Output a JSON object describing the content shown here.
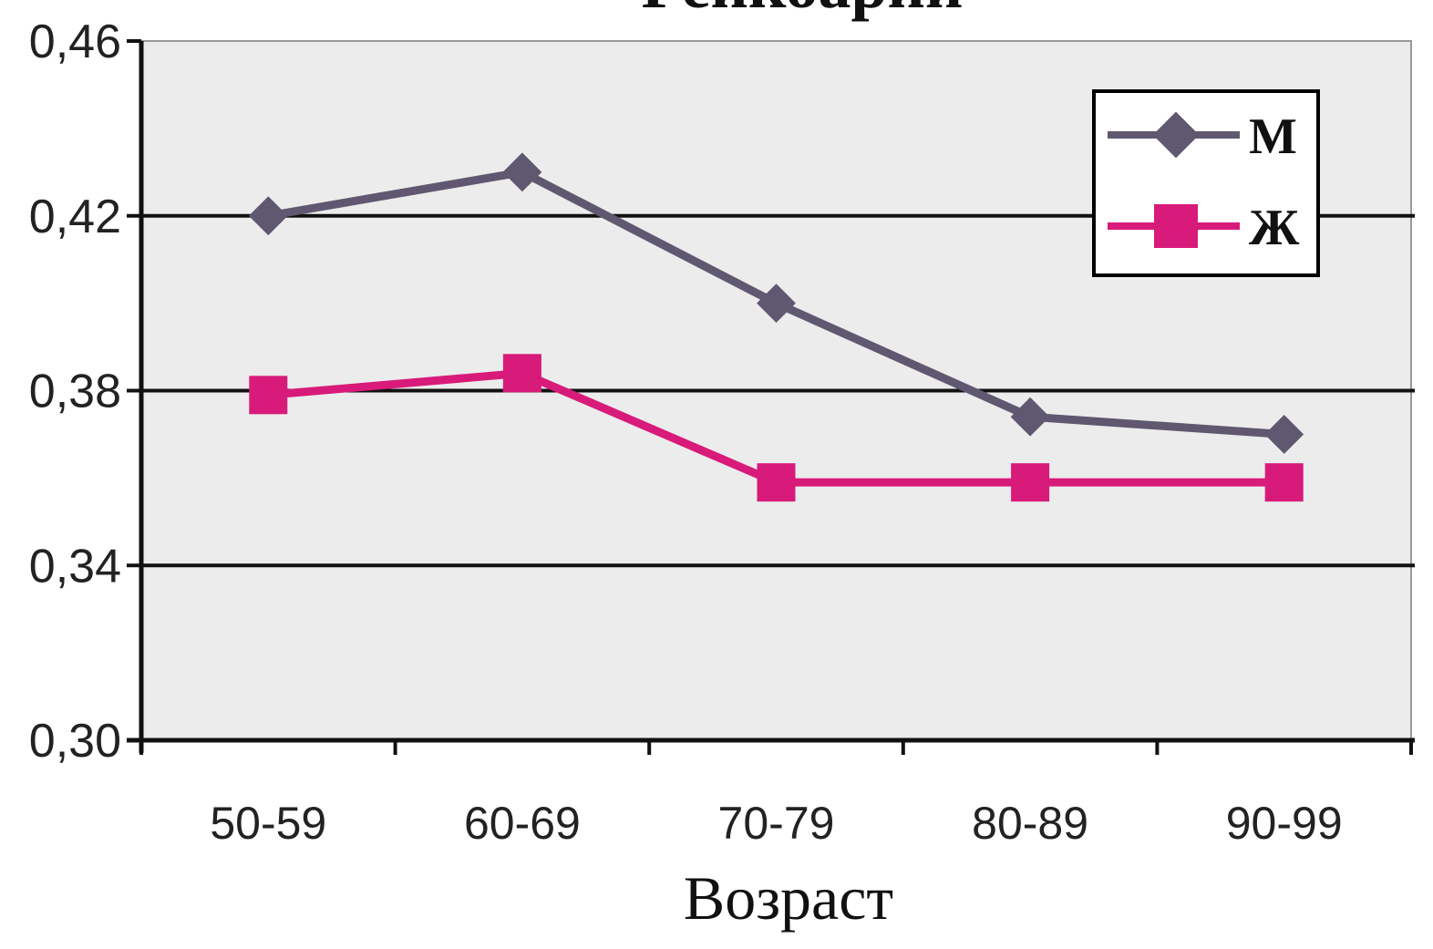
{
  "chart_data": {
    "type": "line",
    "title": "Pейкоарии",
    "xlabel": "Возраст",
    "ylabel": "",
    "categories": [
      "50-59",
      "60-69",
      "70-79",
      "80-89",
      "90-99"
    ],
    "y_ticks": [
      "0,30",
      "0,34",
      "0,38",
      "0,42",
      "0,46"
    ],
    "ylim": [
      0.3,
      0.46
    ],
    "grid": true,
    "legend_position": "top-right",
    "plot_background": "#ececec",
    "series": [
      {
        "name": "М",
        "values": [
          0.42,
          0.43,
          0.4,
          0.374,
          0.37
        ],
        "color": "#5f5870",
        "marker": "diamond"
      },
      {
        "name": "Ж",
        "values": [
          0.379,
          0.384,
          0.359,
          0.359,
          0.359
        ],
        "color": "#d81b7a",
        "marker": "square"
      }
    ]
  }
}
